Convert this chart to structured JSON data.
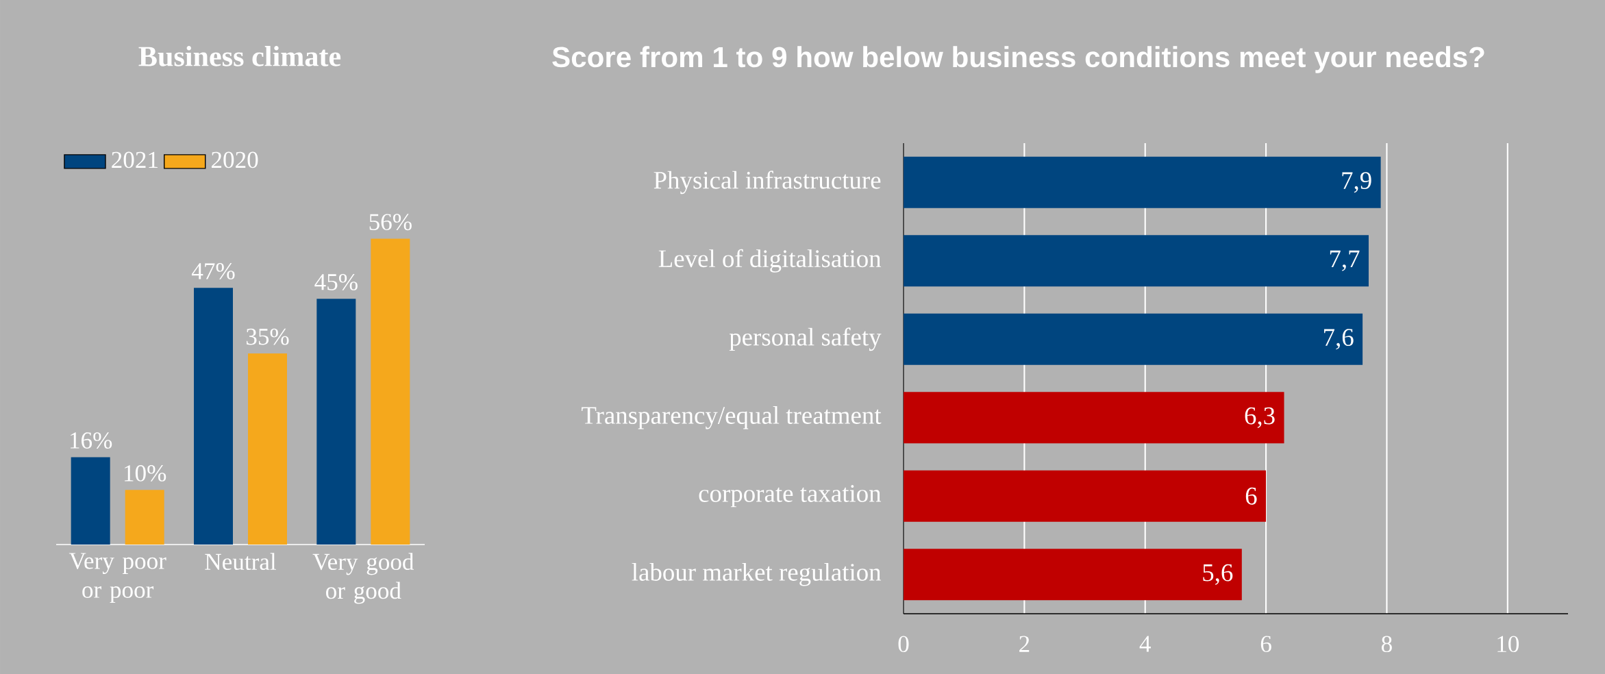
{
  "chart_data": [
    {
      "type": "bar",
      "title": "Business climate",
      "categories": [
        "Very poor or poor",
        "Neutral",
        "Very good or good"
      ],
      "legend": "top",
      "series": [
        {
          "name": "2021",
          "color": "#00457f",
          "values": [
            16,
            47,
            45
          ],
          "value_labels": [
            "16%",
            "47%",
            "45%"
          ]
        },
        {
          "name": "2020",
          "color": "#f5a81c",
          "values": [
            10,
            35,
            56
          ],
          "value_labels": [
            "10%",
            "35%",
            "56%"
          ]
        }
      ]
    },
    {
      "type": "bar",
      "orientation": "horizontal",
      "title": "Score from 1 to 9 how below business conditions meet your needs?",
      "categories": [
        "Physical infrastructure",
        "Level of digitalisation",
        "personal safety",
        "Transparency/equal treatment",
        "corporate taxation",
        "labour market regulation"
      ],
      "values": [
        7.9,
        7.7,
        7.6,
        6.3,
        6,
        5.6
      ],
      "colors": [
        "#00457f",
        "#00457f",
        "#00457f",
        "#c00000",
        "#c00000",
        "#c00000"
      ],
      "value_labels": [
        "7,9",
        "7,7",
        "7,6",
        "6,3",
        "6",
        "5,6"
      ],
      "xlim": [
        0,
        11
      ],
      "xticks": [
        0,
        2,
        4,
        6,
        8,
        10
      ],
      "grid": "x"
    }
  ]
}
